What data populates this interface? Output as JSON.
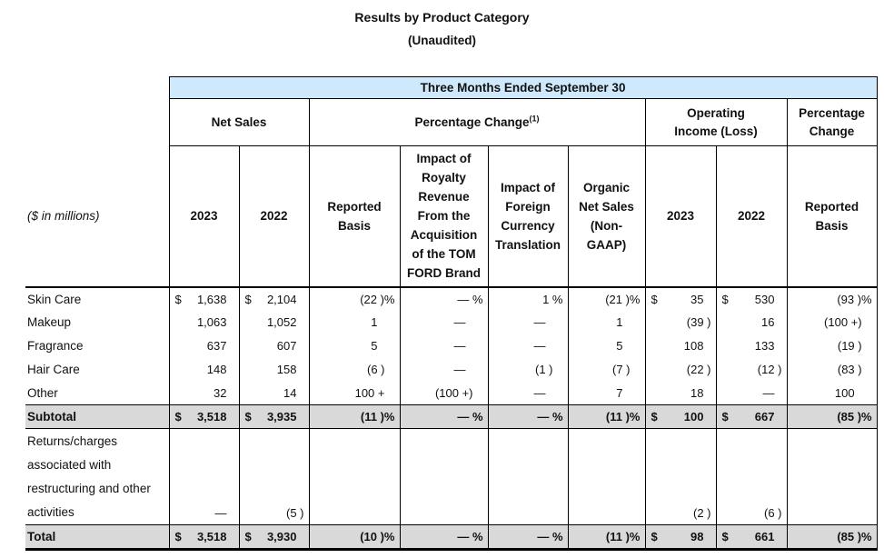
{
  "title": {
    "line1": "Results by Product Category",
    "line2": "(Unaudited)"
  },
  "table": {
    "span_header": "Three Months Ended September 30",
    "row_label_note": "($ in millions)",
    "groups": [
      {
        "label": "Net Sales",
        "cols": 2
      },
      {
        "label": "Percentage Change",
        "superscript": "(1)",
        "cols": 4
      },
      {
        "label": "Operating Income (Loss)",
        "cols": 2
      },
      {
        "label": "Percentage Change",
        "cols": 1
      }
    ],
    "columns": [
      {
        "header": "2023",
        "type": "money"
      },
      {
        "header": "2022",
        "type": "money"
      },
      {
        "header": "Reported Basis",
        "type": "pct"
      },
      {
        "header": "Impact of Royalty Revenue From the Acquisition of the TOM FORD Brand",
        "type": "pct"
      },
      {
        "header": "Impact of Foreign Currency Translation",
        "type": "pct"
      },
      {
        "header": "Organic Net Sales (Non-GAAP)",
        "type": "pct"
      },
      {
        "header": "2023",
        "type": "money"
      },
      {
        "header": "2022",
        "type": "money"
      },
      {
        "header": "Reported Basis",
        "type": "pct"
      }
    ],
    "rows": [
      {
        "label": "Skin Care",
        "style": "data",
        "cells": [
          "$ 1,638",
          "$ 2,104",
          "(22 )%",
          "— %",
          "1 %",
          "(21 )%",
          "$ 35",
          "$ 530",
          "(93 )%"
        ]
      },
      {
        "label": "Makeup",
        "style": "data",
        "cells": [
          "1,063",
          "1,052",
          "1",
          "—",
          "—",
          "1",
          "(39 )",
          "16",
          "(100 +)"
        ]
      },
      {
        "label": "Fragrance",
        "style": "data",
        "cells": [
          "637",
          "607",
          "5",
          "—",
          "—",
          "5",
          "108",
          "133",
          "(19 )"
        ]
      },
      {
        "label": "Hair Care",
        "style": "data",
        "cells": [
          "148",
          "158",
          "(6 )",
          "—",
          "(1 )",
          "(7 )",
          "(22 )",
          "(12 )",
          "(83 )"
        ]
      },
      {
        "label": "Other",
        "style": "data",
        "cells": [
          "32",
          "14",
          "100 +",
          "(100 +)",
          "—",
          "7",
          "18",
          "—",
          "100"
        ]
      },
      {
        "label": "Subtotal",
        "style": "subtotal",
        "cells": [
          "$ 3,518",
          "$ 3,935",
          "(11 )%",
          "— %",
          "— %",
          "(11 )%",
          "$ 100",
          "$ 667",
          "(85 )%"
        ]
      },
      {
        "label": "Returns/charges associated with restructuring and other activities",
        "style": "tall",
        "cells": [
          "—",
          "(5 )",
          "",
          "",
          "",
          "",
          "(2 )",
          "(6 )",
          ""
        ]
      },
      {
        "label": "Total",
        "style": "total",
        "cells": [
          "$ 3,518",
          "$ 3,930",
          "(10 )%",
          "— %",
          "— %",
          "(11 )%",
          "$ 98",
          "$ 661",
          "(85 )%"
        ]
      }
    ]
  }
}
